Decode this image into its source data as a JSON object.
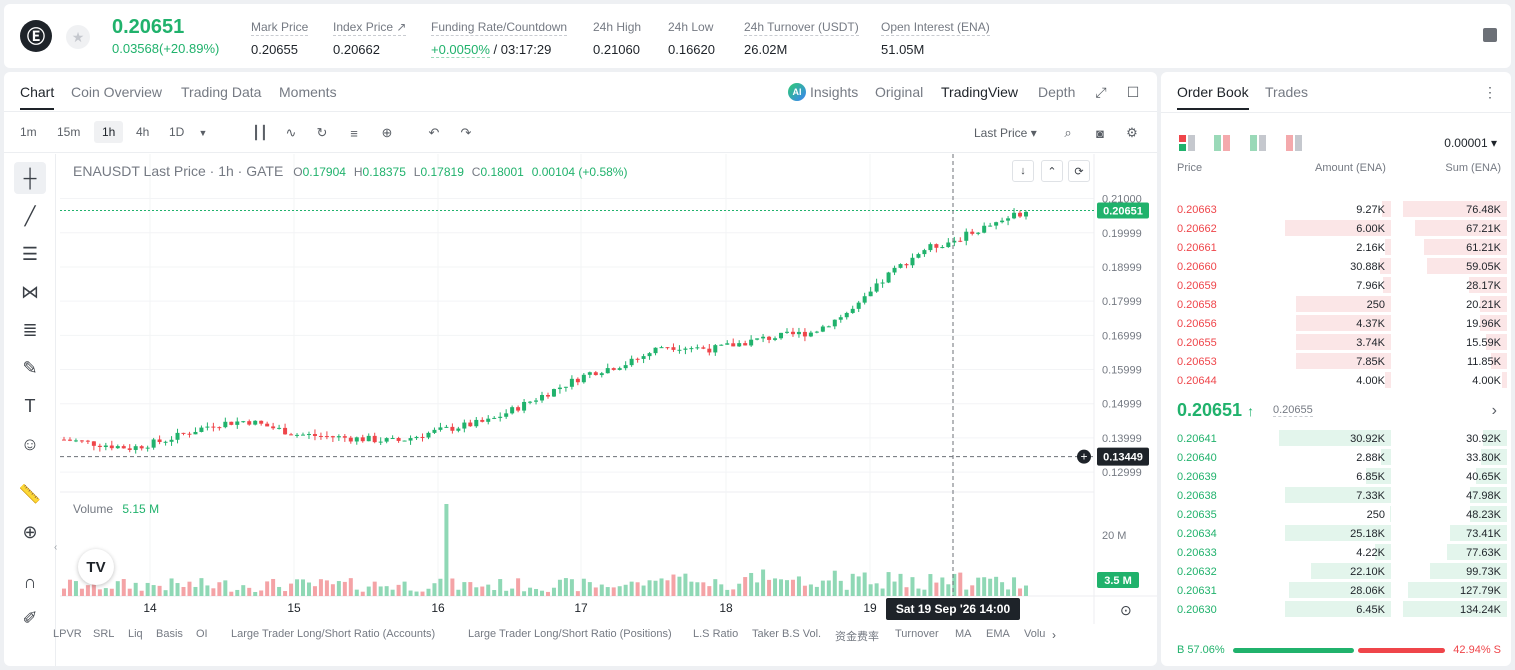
{
  "header": {
    "last_price": "0.20651",
    "change": "0.03568(+20.89%)",
    "stats": [
      {
        "label": "Mark Price",
        "value": "0.20655"
      },
      {
        "label": "Index Price ↗",
        "value": "0.20662"
      },
      {
        "label": "Funding Rate/Countdown",
        "value_green": "+0.0050%",
        "value": " / 03:17:29"
      },
      {
        "label": "24h High",
        "value": "0.21060"
      },
      {
        "label": "24h Low",
        "value": "0.16620"
      },
      {
        "label": "24h Turnover (USDT)",
        "value": "26.02M"
      },
      {
        "label": "Open Interest (ENA)",
        "value": "51.05M"
      }
    ]
  },
  "tabs": {
    "left": [
      "Chart",
      "Coin Overview",
      "Trading Data",
      "Moments"
    ],
    "right": [
      "Insights",
      "Original",
      "TradingView",
      "Depth"
    ],
    "ai_badge": "AI"
  },
  "toolbar": {
    "timeframes": [
      "1m",
      "15m",
      "1h",
      "4h",
      "1D"
    ],
    "active_timeframe": "1h",
    "price_type": "Last Price ▾"
  },
  "chart_legend": {
    "symbol": "ENAUSDT Last Price · 1h · GATE",
    "o_label": "O",
    "o": "0.17904",
    "h_label": "H",
    "h": "0.18375",
    "l_label": "L",
    "l": "0.17819",
    "c_label": "C",
    "c": "0.18001",
    "chg": "0.00104 (+0.58%)",
    "volume_label": "Volume",
    "volume_value": "5.15 M"
  },
  "chart_data": {
    "type": "candlestick",
    "y_ticks": [
      "0.21000",
      "0.19999",
      "0.18999",
      "0.17999",
      "0.16999",
      "0.15999",
      "0.14999",
      "0.13999",
      "0.12999"
    ],
    "ylim": [
      0.1265,
      0.2125
    ],
    "x_ticks": [
      "14",
      "15",
      "16",
      "17",
      "18",
      "19"
    ],
    "current_price_label": "0.20651",
    "crosshair_price_label": "0.13449",
    "crosshair_time_label": "Sat 19 Sep '26   14:00",
    "volume_axis_label": "20 M",
    "volume_current_label": "3.5 M",
    "up_color": "#20b26c",
    "down_color": "#ef454a"
  },
  "bottom_indicators": [
    "LPVR",
    "SRL",
    "Liq",
    "Basis",
    "OI",
    "Large Trader Long/Short Ratio (Accounts)",
    "Large Trader Long/Short Ratio (Positions)",
    "L.S Ratio",
    "Taker B.S Vol.",
    "资金费率",
    "Turnover",
    "MA",
    "EMA",
    "Volu"
  ],
  "order_book": {
    "tabs": [
      "Order Book",
      "Trades"
    ],
    "precision": "0.00001 ▾",
    "headers": [
      "Price",
      "Amount (ENA)",
      "Sum (ENA)"
    ],
    "asks": [
      {
        "price": "0.20663",
        "amount": "9.27K",
        "sum": "76.48K",
        "amount_frac": 0.08,
        "sum_frac": 1.0
      },
      {
        "price": "0.20662",
        "amount": "6.00K",
        "sum": "67.21K",
        "amount_frac": 0.95,
        "sum_frac": 0.88
      },
      {
        "price": "0.20661",
        "amount": "2.16K",
        "sum": "61.21K",
        "amount_frac": 0.05,
        "sum_frac": 0.8
      },
      {
        "price": "0.20660",
        "amount": "30.88K",
        "sum": "59.05K",
        "amount_frac": 0.1,
        "sum_frac": 0.77
      },
      {
        "price": "0.20659",
        "amount": "7.96K",
        "sum": "28.17K",
        "amount_frac": 0.07,
        "sum_frac": 0.37
      },
      {
        "price": "0.20658",
        "amount": "250",
        "sum": "20.21K",
        "amount_frac": 0.85,
        "sum_frac": 0.26
      },
      {
        "price": "0.20656",
        "amount": "4.37K",
        "sum": "19.96K",
        "amount_frac": 0.85,
        "sum_frac": 0.26
      },
      {
        "price": "0.20655",
        "amount": "3.74K",
        "sum": "15.59K",
        "amount_frac": 0.85,
        "sum_frac": 0.2
      },
      {
        "price": "0.20653",
        "amount": "7.85K",
        "sum": "11.85K",
        "amount_frac": 0.85,
        "sum_frac": 0.15
      },
      {
        "price": "0.20644",
        "amount": "4.00K",
        "sum": "4.00K",
        "amount_frac": 0.05,
        "sum_frac": 0.05
      }
    ],
    "mid_price": "0.20651",
    "mid_arrow": "↑",
    "mid_mark": "0.20655",
    "bids": [
      {
        "price": "0.20641",
        "amount": "30.92K",
        "sum": "30.92K",
        "amount_frac": 1.0,
        "sum_frac": 0.23
      },
      {
        "price": "0.20640",
        "amount": "2.88K",
        "sum": "33.80K",
        "amount_frac": 0.09,
        "sum_frac": 0.25
      },
      {
        "price": "0.20639",
        "amount": "6.85K",
        "sum": "40.65K",
        "amount_frac": 0.22,
        "sum_frac": 0.3
      },
      {
        "price": "0.20638",
        "amount": "7.33K",
        "sum": "47.98K",
        "amount_frac": 0.95,
        "sum_frac": 0.36
      },
      {
        "price": "0.20635",
        "amount": "250",
        "sum": "48.23K",
        "amount_frac": 0.01,
        "sum_frac": 0.36
      },
      {
        "price": "0.20634",
        "amount": "25.18K",
        "sum": "73.41K",
        "amount_frac": 0.95,
        "sum_frac": 0.55
      },
      {
        "price": "0.20633",
        "amount": "4.22K",
        "sum": "77.63K",
        "amount_frac": 0.14,
        "sum_frac": 0.58
      },
      {
        "price": "0.20632",
        "amount": "22.10K",
        "sum": "99.73K",
        "amount_frac": 0.71,
        "sum_frac": 0.74
      },
      {
        "price": "0.20631",
        "amount": "28.06K",
        "sum": "127.79K",
        "amount_frac": 0.91,
        "sum_frac": 0.95
      },
      {
        "price": "0.20630",
        "amount": "6.45K",
        "sum": "134.24K",
        "amount_frac": 0.95,
        "sum_frac": 1.0
      }
    ],
    "buy_ratio": "B 57.06%",
    "sell_ratio": "42.94% S",
    "buy_frac": 0.5706
  }
}
